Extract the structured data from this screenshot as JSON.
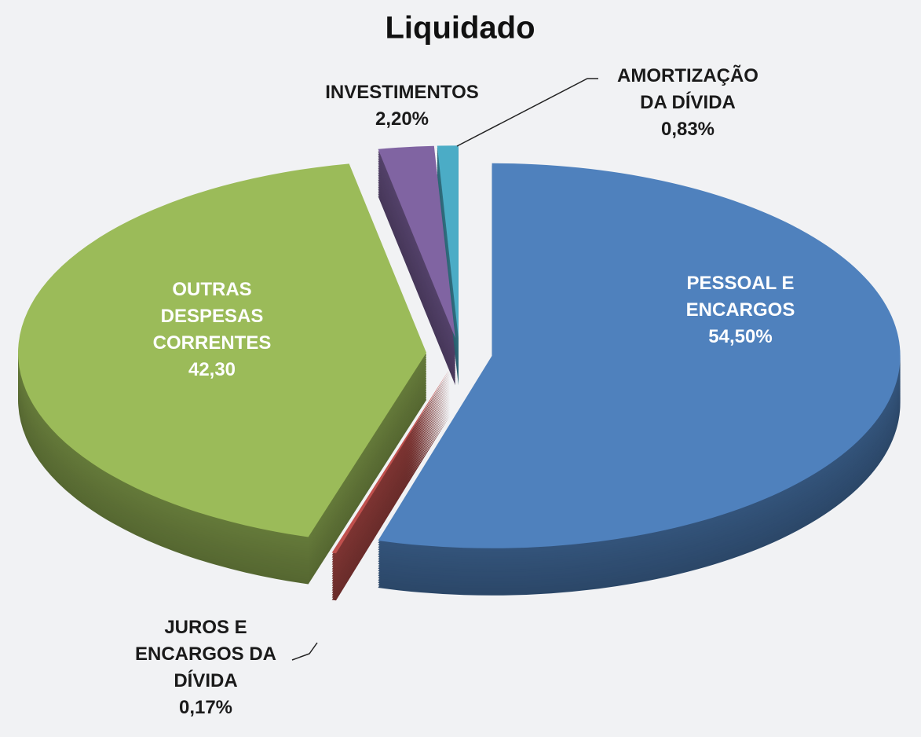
{
  "chart_data": {
    "type": "pie",
    "title": "Liquidado",
    "categories": [
      "PESSOAL E ENCARGOS",
      "JUROS E ENCARGOS DA DÍVIDA",
      "OUTRAS DESPESAS CORRENTES",
      "INVESTIMENTOS",
      "AMORTIZAÇÃO DA DÍVIDA"
    ],
    "values": [
      54.5,
      0.17,
      42.3,
      2.2,
      0.83
    ],
    "value_labels": [
      "54,50%",
      "0,17%",
      "42,30",
      "2,20%",
      "0,83%"
    ],
    "colors": [
      "#4f81bd",
      "#c0504d",
      "#9bbb59",
      "#8064a2",
      "#4bacc6"
    ]
  }
}
